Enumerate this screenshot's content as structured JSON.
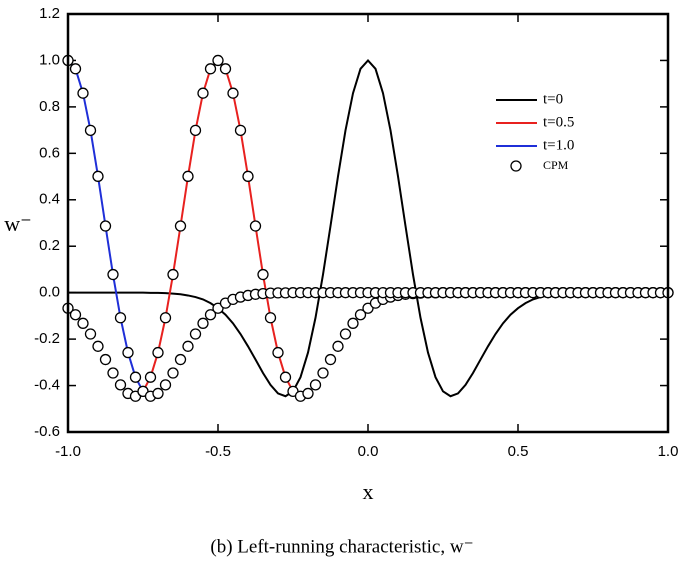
{
  "chart_data": {
    "type": "line",
    "xlabel": "x",
    "ylabel": "w⁻",
    "caption": "(b) Left-running characteristic,  w⁻",
    "xlim": [
      -1,
      1
    ],
    "ylim": [
      -0.6,
      1.2
    ],
    "xticks": [
      {
        "value": -1,
        "label": "-1.0"
      },
      {
        "value": -0.5,
        "label": "-0.5"
      },
      {
        "value": 0,
        "label": "0.0"
      },
      {
        "value": 0.5,
        "label": "0.5"
      },
      {
        "value": 1,
        "label": "1.0"
      }
    ],
    "yticks": [
      -0.6,
      -0.4,
      -0.2,
      {
        "value": 0,
        "label": "0.0"
      },
      0.2,
      0.4,
      0.6,
      0.8,
      {
        "value": 1,
        "label": "1.0"
      },
      1.2
    ],
    "grid": false,
    "x": [
      -1,
      -0.975,
      -0.95,
      -0.925,
      -0.9,
      -0.875,
      -0.85,
      -0.825,
      -0.8,
      -0.775,
      -0.75,
      -0.725,
      -0.7,
      -0.675,
      -0.65,
      -0.625,
      -0.6,
      -0.575,
      -0.55,
      -0.525,
      -0.5,
      -0.475,
      -0.45,
      -0.425,
      -0.4,
      -0.375,
      -0.35,
      -0.325,
      -0.3,
      -0.275,
      -0.25,
      -0.225,
      -0.2,
      -0.175,
      -0.15,
      -0.125,
      -0.1,
      -0.075,
      -0.05,
      -0.025,
      0,
      0.025,
      0.05,
      0.075,
      0.1,
      0.125,
      0.15,
      0.175,
      0.2,
      0.225,
      0.25,
      0.275,
      0.3,
      0.325,
      0.35,
      0.375,
      0.4,
      0.425,
      0.45,
      0.475,
      0.5,
      0.525,
      0.55,
      0.575,
      0.6,
      0.625,
      0.65,
      0.675,
      0.7,
      0.725,
      0.75,
      0.775,
      0.8,
      0.825,
      0.85,
      0.875,
      0.9,
      0.925,
      0.95,
      0.975,
      1
    ],
    "series": [
      {
        "name": "t=0",
        "color": "#000000",
        "kind": "line",
        "values": [
          0,
          0,
          0,
          0,
          0,
          0,
          0,
          0,
          0,
          0,
          0,
          -0.001,
          -0.001,
          -0.002,
          -0.004,
          -0.007,
          -0.012,
          -0.019,
          -0.029,
          -0.045,
          -0.067,
          -0.095,
          -0.132,
          -0.178,
          -0.231,
          -0.288,
          -0.346,
          -0.397,
          -0.434,
          -0.446,
          -0.425,
          -0.364,
          -0.258,
          -0.108,
          0.078,
          0.287,
          0.501,
          0.699,
          0.859,
          0.964,
          1,
          0.964,
          0.859,
          0.699,
          0.501,
          0.287,
          0.078,
          -0.108,
          -0.258,
          -0.364,
          -0.425,
          -0.446,
          -0.434,
          -0.397,
          -0.346,
          -0.288,
          -0.231,
          -0.178,
          -0.132,
          -0.095,
          -0.067,
          -0.045,
          -0.029,
          -0.019,
          -0.012,
          -0.007,
          -0.004,
          -0.002,
          -0.001,
          -0.001,
          0,
          0,
          0,
          0,
          0,
          0,
          0,
          0,
          0,
          0,
          0
        ]
      },
      {
        "name": "t=0.5",
        "color": "#e8211f",
        "kind": "line",
        "x": [
          -0.775,
          -0.75,
          -0.725,
          -0.7,
          -0.675,
          -0.65,
          -0.625,
          -0.6,
          -0.575,
          -0.55,
          -0.525,
          -0.5,
          -0.475,
          -0.45,
          -0.425,
          -0.4,
          -0.375,
          -0.35,
          -0.325,
          -0.3,
          -0.275,
          -0.25,
          -0.225
        ],
        "values": [
          -0.446,
          -0.425,
          -0.364,
          -0.258,
          -0.108,
          0.078,
          0.287,
          0.501,
          0.699,
          0.859,
          0.964,
          1,
          0.964,
          0.859,
          0.699,
          0.501,
          0.287,
          0.078,
          -0.108,
          -0.258,
          -0.364,
          -0.425,
          -0.446
        ]
      },
      {
        "name": "t=1.0",
        "color": "#1f2fd8",
        "kind": "line",
        "x": [
          -1,
          -0.975,
          -0.95,
          -0.925,
          -0.9,
          -0.875,
          -0.85,
          -0.825,
          -0.8,
          -0.775,
          -0.75,
          -0.725
        ],
        "values": [
          1,
          0.964,
          0.859,
          0.699,
          0.501,
          0.287,
          0.078,
          -0.108,
          -0.258,
          -0.364,
          -0.425,
          -0.446
        ]
      },
      {
        "name": "CPM",
        "color": "#000000",
        "kind": "scatter",
        "values": [
          [
            -0.067,
            -0.095,
            -0.132,
            -0.178,
            -0.231,
            -0.288,
            -0.346,
            -0.397,
            -0.434,
            -0.446,
            -0.425,
            -0.364,
            -0.258,
            -0.108,
            0.078,
            0.287,
            0.501,
            0.699,
            0.859,
            0.964,
            1,
            0.964,
            0.859,
            0.699,
            0.501,
            0.287,
            0.078,
            -0.108,
            -0.258,
            -0.364,
            -0.425,
            -0.446,
            -0.434,
            -0.397,
            -0.346,
            -0.288,
            -0.231,
            -0.178,
            -0.132,
            -0.095,
            -0.067,
            -0.045,
            -0.029,
            -0.019,
            -0.012,
            -0.007,
            -0.004,
            -0.002,
            -0.001,
            -0.001,
            0,
            0,
            0,
            0,
            0,
            0,
            0,
            0,
            0,
            0,
            0,
            0,
            0,
            0,
            0,
            0,
            0,
            0,
            0,
            0,
            0,
            0,
            0,
            0,
            0,
            0,
            0,
            0,
            0,
            0,
            0
          ],
          [
            1,
            0.964,
            0.859,
            0.699,
            0.501,
            0.287,
            0.078,
            -0.108,
            -0.258,
            -0.364,
            -0.425,
            -0.446,
            -0.434,
            -0.397,
            -0.346,
            -0.288,
            -0.231,
            -0.178,
            -0.132,
            -0.095,
            -0.067,
            -0.045,
            -0.029,
            -0.019,
            -0.012,
            -0.007,
            -0.004,
            -0.002,
            -0.001,
            -0.001,
            0,
            0,
            0,
            0,
            0,
            0,
            0,
            0,
            0,
            0,
            0,
            0,
            0,
            0,
            0,
            0,
            0,
            0,
            0,
            0,
            0,
            0,
            0,
            0,
            0,
            0,
            0,
            0,
            0,
            0,
            0,
            0,
            0,
            0,
            0,
            0,
            0,
            0,
            0,
            0,
            0,
            0,
            0,
            0,
            0,
            0,
            0,
            0,
            0,
            0,
            0
          ]
        ]
      }
    ]
  }
}
